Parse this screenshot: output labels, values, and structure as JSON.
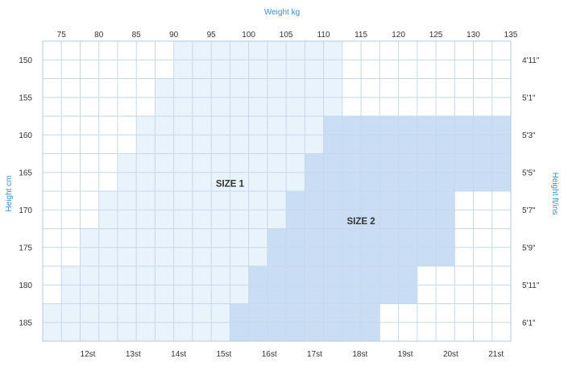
{
  "chart_data": {
    "type": "heatmap",
    "title": "",
    "top_axis_label": "Weight kg",
    "left_axis_label": "Height cm",
    "right_axis_label": "Height ft/ins",
    "weight_kg_ticks": [
      75,
      80,
      85,
      90,
      95,
      100,
      105,
      110,
      115,
      120,
      125,
      130,
      135
    ],
    "height_cm_ticks": [
      150,
      155,
      160,
      165,
      170,
      175,
      180,
      185
    ],
    "weight_kg_range": [
      72.5,
      135
    ],
    "height_cm_range": [
      147.5,
      187.5
    ],
    "height_ftin_ticks": [
      "4'11\"",
      "5'1\"",
      "5'3\"",
      "5'5\"",
      "5'7\"",
      "5'9\"",
      "5'11\"",
      "6'1\""
    ],
    "weight_st_ticks": [
      "12st",
      "13st",
      "14st",
      "15st",
      "16st",
      "17st",
      "18st",
      "19st",
      "20st",
      "21st"
    ],
    "regions": [
      {
        "label": "SIZE 1",
        "color": "#e9f3fc",
        "label_position": {
          "weight_kg": 97.5,
          "height_cm": 166.5
        },
        "rows": [
          {
            "height_cm_range": [
              147.5,
              152.5
            ],
            "weight_kg_range": [
              90,
              112.5
            ]
          },
          {
            "height_cm_range": [
              152.5,
              157.5
            ],
            "weight_kg_range": [
              87.5,
              112.5
            ]
          },
          {
            "height_cm_range": [
              157.5,
              162.5
            ],
            "weight_kg_range": [
              85,
              110
            ]
          },
          {
            "height_cm_range": [
              162.5,
              167.5
            ],
            "weight_kg_range": [
              82.5,
              107.5
            ]
          },
          {
            "height_cm_range": [
              167.5,
              172.5
            ],
            "weight_kg_range": [
              80,
              105
            ]
          },
          {
            "height_cm_range": [
              172.5,
              177.5
            ],
            "weight_kg_range": [
              77.5,
              102.5
            ]
          },
          {
            "height_cm_range": [
              177.5,
              182.5
            ],
            "weight_kg_range": [
              75,
              100
            ]
          },
          {
            "height_cm_range": [
              182.5,
              187.5
            ],
            "weight_kg_range": [
              72.5,
              97.5
            ]
          }
        ]
      },
      {
        "label": "SIZE 2",
        "color": "#c9def4",
        "label_position": {
          "weight_kg": 115,
          "height_cm": 171.5
        },
        "rows": [
          {
            "height_cm_range": [
              157.5,
              162.5
            ],
            "weight_kg_range": [
              110,
              135
            ]
          },
          {
            "height_cm_range": [
              162.5,
              167.5
            ],
            "weight_kg_range": [
              107.5,
              135
            ]
          },
          {
            "height_cm_range": [
              167.5,
              172.5
            ],
            "weight_kg_range": [
              105,
              127.5
            ]
          },
          {
            "height_cm_range": [
              172.5,
              177.5
            ],
            "weight_kg_range": [
              102.5,
              127.5
            ]
          },
          {
            "height_cm_range": [
              177.5,
              182.5
            ],
            "weight_kg_range": [
              100,
              122.5
            ]
          },
          {
            "height_cm_range": [
              182.5,
              187.5
            ],
            "weight_kg_range": [
              97.5,
              117.5
            ]
          }
        ]
      }
    ],
    "grid": true,
    "colors": {
      "grid": "#c7d8ea",
      "border": "#b5c8db",
      "axis_title": "#3a8fd0",
      "text": "#333333"
    }
  }
}
